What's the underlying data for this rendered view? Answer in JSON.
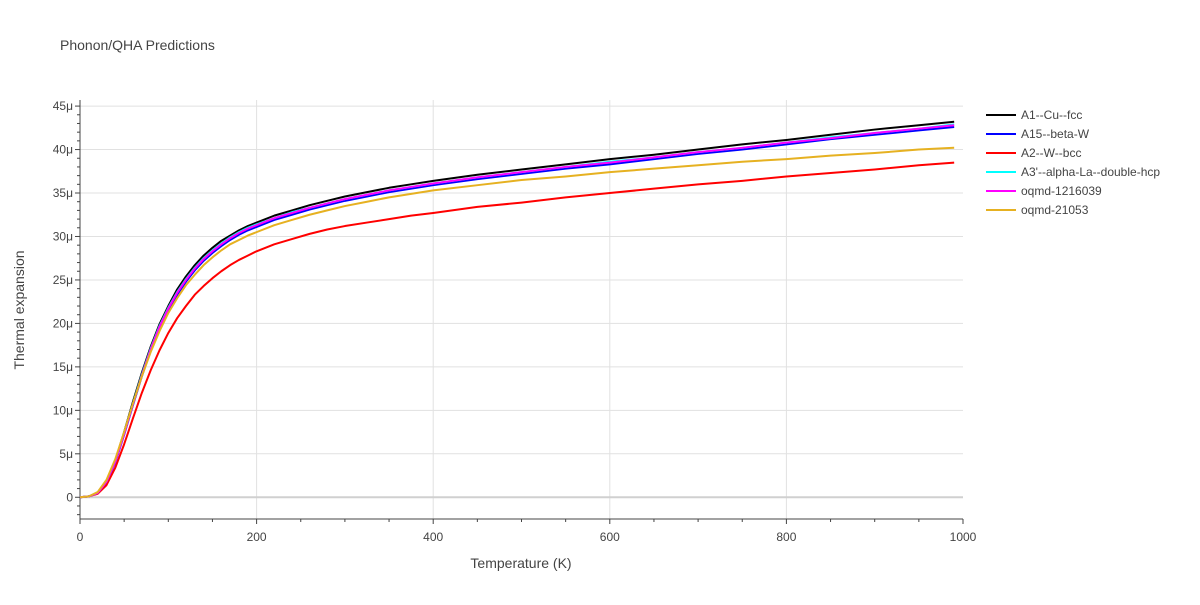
{
  "chart_data": {
    "type": "line",
    "title": "Phonon/QHA Predictions",
    "xlabel": "Temperature (K)",
    "ylabel": "Thermal expansion",
    "xlim": [
      0,
      1000
    ],
    "ylim": [
      -2.5e-06,
      4.57e-05
    ],
    "x_ticks": [
      0,
      200,
      400,
      600,
      800,
      1000
    ],
    "x_tick_labels": [
      "0",
      "200",
      "400",
      "600",
      "800",
      "1000"
    ],
    "y_ticks": [
      0,
      5e-06,
      1e-05,
      1.5e-05,
      2e-05,
      2.5e-05,
      3e-05,
      3.5e-05,
      4e-05,
      4.5e-05
    ],
    "y_tick_labels": [
      "0",
      "5μ",
      "10μ",
      "15μ",
      "20μ",
      "25μ",
      "30μ",
      "35μ",
      "40μ",
      "45μ"
    ],
    "grid": true,
    "legend_position": "right",
    "x": [
      0,
      10,
      20,
      30,
      40,
      50,
      60,
      70,
      80,
      90,
      100,
      110,
      120,
      130,
      140,
      150,
      160,
      170,
      180,
      190,
      200,
      220,
      240,
      260,
      280,
      300,
      325,
      350,
      375,
      400,
      450,
      500,
      550,
      600,
      650,
      700,
      750,
      800,
      850,
      900,
      950,
      990
    ],
    "series": [
      {
        "name": "A1--Cu--fcc",
        "color": "#000000",
        "values": [
          0,
          1e-07,
          5e-07,
          1.8e-06,
          4.2e-06,
          7.5e-06,
          1.1e-05,
          1.43e-05,
          1.73e-05,
          1.99e-05,
          2.2e-05,
          2.39e-05,
          2.54e-05,
          2.67e-05,
          2.78e-05,
          2.87e-05,
          2.95e-05,
          3.01e-05,
          3.07e-05,
          3.12e-05,
          3.16e-05,
          3.24e-05,
          3.3e-05,
          3.36e-05,
          3.41e-05,
          3.46e-05,
          3.51e-05,
          3.56e-05,
          3.6e-05,
          3.64e-05,
          3.71e-05,
          3.77e-05,
          3.83e-05,
          3.89e-05,
          3.94e-05,
          4e-05,
          4.06e-05,
          4.11e-05,
          4.17e-05,
          4.23e-05,
          4.28e-05,
          4.32e-05
        ]
      },
      {
        "name": "A15--beta-W",
        "color": "#0000ff",
        "values": [
          0,
          1e-07,
          5e-07,
          1.7e-06,
          4e-06,
          7.2e-06,
          1.06e-05,
          1.39e-05,
          1.69e-05,
          1.94e-05,
          2.15e-05,
          2.33e-05,
          2.48e-05,
          2.61e-05,
          2.72e-05,
          2.81e-05,
          2.89e-05,
          2.96e-05,
          3.02e-05,
          3.07e-05,
          3.11e-05,
          3.19e-05,
          3.25e-05,
          3.31e-05,
          3.36e-05,
          3.41e-05,
          3.46e-05,
          3.51e-05,
          3.55e-05,
          3.59e-05,
          3.66e-05,
          3.72e-05,
          3.78e-05,
          3.83e-05,
          3.89e-05,
          3.95e-05,
          4e-05,
          4.06e-05,
          4.12e-05,
          4.17e-05,
          4.22e-05,
          4.26e-05
        ]
      },
      {
        "name": "A2--W--bcc",
        "color": "#ff0000",
        "values": [
          0,
          1e-07,
          4e-07,
          1.4e-06,
          3.4e-06,
          6.1e-06,
          9.1e-06,
          1.2e-05,
          1.46e-05,
          1.69e-05,
          1.89e-05,
          2.06e-05,
          2.2e-05,
          2.33e-05,
          2.43e-05,
          2.52e-05,
          2.6e-05,
          2.67e-05,
          2.73e-05,
          2.78e-05,
          2.83e-05,
          2.91e-05,
          2.97e-05,
          3.03e-05,
          3.08e-05,
          3.12e-05,
          3.16e-05,
          3.2e-05,
          3.24e-05,
          3.27e-05,
          3.34e-05,
          3.39e-05,
          3.45e-05,
          3.5e-05,
          3.55e-05,
          3.6e-05,
          3.64e-05,
          3.69e-05,
          3.73e-05,
          3.77e-05,
          3.82e-05,
          3.85e-05
        ]
      },
      {
        "name": "A3'--alpha-La--double-hcp",
        "color": "#00ffff",
        "values": [
          0,
          1e-07,
          5e-07,
          1.8e-06,
          4.1e-06,
          7.4e-06,
          1.08e-05,
          1.41e-05,
          1.71e-05,
          1.97e-05,
          2.18e-05,
          2.36e-05,
          2.51e-05,
          2.64e-05,
          2.75e-05,
          2.84e-05,
          2.92e-05,
          2.99e-05,
          3.05e-05,
          3.1e-05,
          3.14e-05,
          3.21e-05,
          3.28e-05,
          3.33e-05,
          3.38e-05,
          3.43e-05,
          3.48e-05,
          3.53e-05,
          3.57e-05,
          3.61e-05,
          3.68e-05,
          3.74e-05,
          3.8e-05,
          3.86e-05,
          3.91e-05,
          3.97e-05,
          4.02e-05,
          4.08e-05,
          4.14e-05,
          4.19e-05,
          4.24e-05,
          4.29e-05
        ]
      },
      {
        "name": "oqmd-1216039",
        "color": "#ff00ff",
        "values": [
          0,
          1e-07,
          5e-07,
          1.8e-06,
          4.1e-06,
          7.3e-06,
          1.07e-05,
          1.4e-05,
          1.7e-05,
          1.96e-05,
          2.17e-05,
          2.35e-05,
          2.5e-05,
          2.63e-05,
          2.74e-05,
          2.83e-05,
          2.91e-05,
          2.98e-05,
          3.04e-05,
          3.09e-05,
          3.13e-05,
          3.21e-05,
          3.27e-05,
          3.33e-05,
          3.38e-05,
          3.43e-05,
          3.48e-05,
          3.53e-05,
          3.57e-05,
          3.61e-05,
          3.68e-05,
          3.74e-05,
          3.8e-05,
          3.85e-05,
          3.91e-05,
          3.97e-05,
          4.02e-05,
          4.08e-05,
          4.13e-05,
          4.19e-05,
          4.24e-05,
          4.28e-05
        ]
      },
      {
        "name": "oqmd-21053",
        "color": "#e6b121",
        "values": [
          0,
          1e-07,
          6e-07,
          2e-06,
          4.4e-06,
          7.5e-06,
          1.08e-05,
          1.39e-05,
          1.67e-05,
          1.91e-05,
          2.12e-05,
          2.29e-05,
          2.44e-05,
          2.56e-05,
          2.67e-05,
          2.76e-05,
          2.84e-05,
          2.91e-05,
          2.96e-05,
          3.01e-05,
          3.05e-05,
          3.13e-05,
          3.19e-05,
          3.25e-05,
          3.3e-05,
          3.35e-05,
          3.4e-05,
          3.45e-05,
          3.49e-05,
          3.53e-05,
          3.59e-05,
          3.65e-05,
          3.69e-05,
          3.74e-05,
          3.78e-05,
          3.82e-05,
          3.86e-05,
          3.89e-05,
          3.93e-05,
          3.96e-05,
          4e-05,
          4.02e-05
        ]
      }
    ]
  }
}
